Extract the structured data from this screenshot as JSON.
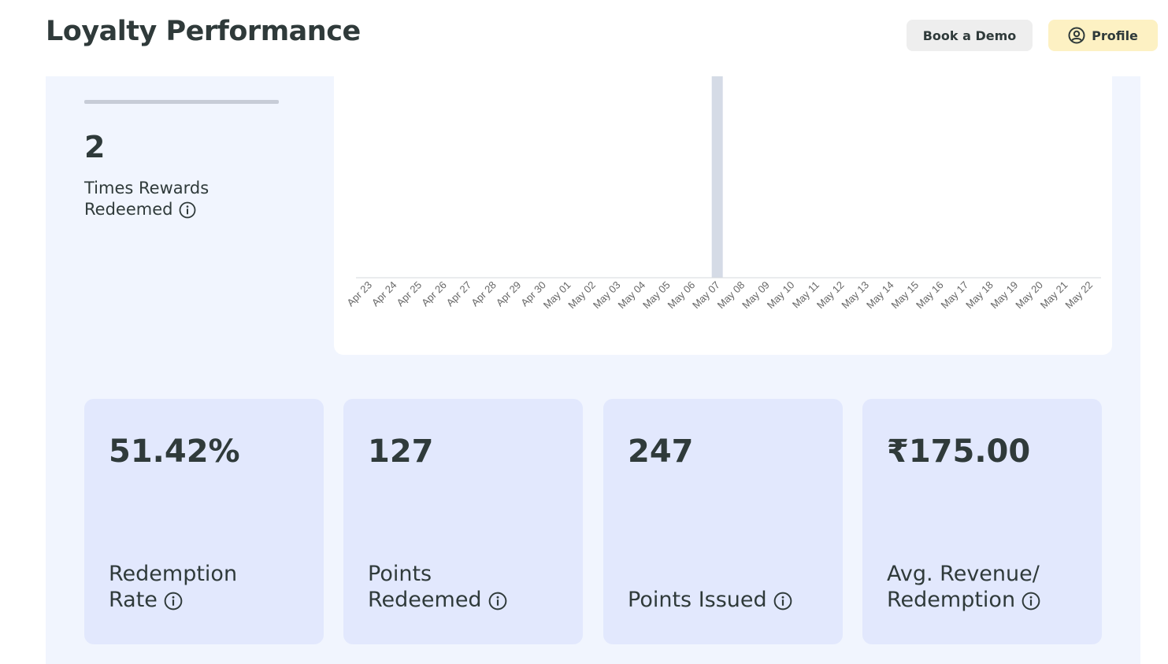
{
  "header": {
    "title": "Loyalty Performance",
    "book_demo_label": "Book a Demo",
    "profile_label": "Profile"
  },
  "redemptions": {
    "value": "2",
    "label_line1": "Times Rewards",
    "label_line2": "Redeemed"
  },
  "chart_data": {
    "type": "bar",
    "categories": [
      "Apr 23",
      "Apr 24",
      "Apr 25",
      "Apr 26",
      "Apr 27",
      "Apr 28",
      "Apr 29",
      "Apr 30",
      "May 01",
      "May 02",
      "May 03",
      "May 04",
      "May 05",
      "May 06",
      "May 07",
      "May 08",
      "May 09",
      "May 10",
      "May 11",
      "May 12",
      "May 13",
      "May 14",
      "May 15",
      "May 16",
      "May 17",
      "May 18",
      "May 19",
      "May 20",
      "May 21",
      "May 22"
    ],
    "values": [
      0,
      0,
      0,
      0,
      0,
      0,
      0,
      0,
      0,
      0,
      0,
      0,
      0,
      0,
      2,
      0,
      0,
      0,
      0,
      0,
      0,
      0,
      0,
      0,
      0,
      0,
      0,
      0,
      0,
      0
    ],
    "ylim": [
      0,
      2
    ],
    "grid": false,
    "bar_color": "#d5dbe6",
    "axis_color": "#d6d9de",
    "tick_color": "#666666"
  },
  "cards": [
    {
      "value": "51.42%",
      "label_line1": "Redemption",
      "label_line2": "Rate"
    },
    {
      "value": "127",
      "label_line1": "Points",
      "label_line2": "Redeemed"
    },
    {
      "value": "247",
      "label_line1": "",
      "label_line2": "Points Issued"
    },
    {
      "value": "₹175.00",
      "label_line1": "Avg. Revenue/",
      "label_line2": "Redemption"
    }
  ],
  "icons": {
    "info": "info-circle-icon",
    "profile": "user-circle-icon"
  }
}
